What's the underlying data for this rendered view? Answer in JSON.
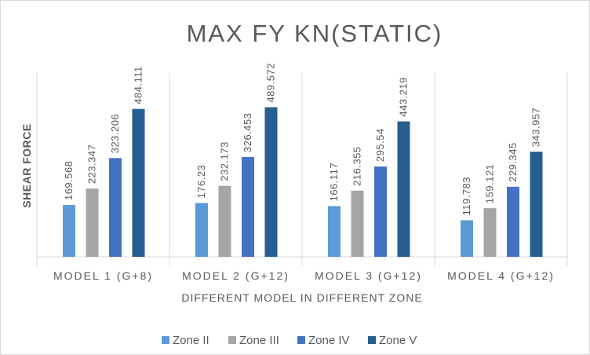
{
  "chart_data": {
    "type": "bar",
    "title": "MAX FY KN(STATIC)",
    "xlabel": "DIFFERENT MODEL IN DIFFERENT ZONE",
    "ylabel": "SHEAR FORCE",
    "categories": [
      "MODEL 1 (G+8)",
      "MODEL 2 (G+12)",
      "MODEL 3 (G+12)",
      "MODEL 4 (G+12)"
    ],
    "series": [
      {
        "name": "Zone II",
        "values": [
          169.568,
          176.23,
          166.117,
          119.783
        ],
        "labels": [
          "169.568",
          "176.23",
          "166.117",
          "119.783"
        ],
        "color": "#5b9bd5"
      },
      {
        "name": "Zone III",
        "values": [
          223.347,
          232.173,
          216.355,
          159.121
        ],
        "labels": [
          "223.347",
          "232.173",
          "216.355",
          "159.121"
        ],
        "color": "#a5a5a5"
      },
      {
        "name": "Zone IV",
        "values": [
          323.206,
          326.453,
          295.54,
          229.345
        ],
        "labels": [
          "323.206",
          "326.453",
          "295.54",
          "229.345"
        ],
        "color": "#4472c4"
      },
      {
        "name": "Zone V",
        "values": [
          484.111,
          489.572,
          443.219,
          343.957
        ],
        "labels": [
          "484.111",
          "489.572",
          "443.219",
          "343.957"
        ],
        "color": "#255e91"
      }
    ],
    "ylim": [
      0,
      600
    ],
    "grid": false,
    "legend_position": "bottom",
    "data_labels": true
  }
}
